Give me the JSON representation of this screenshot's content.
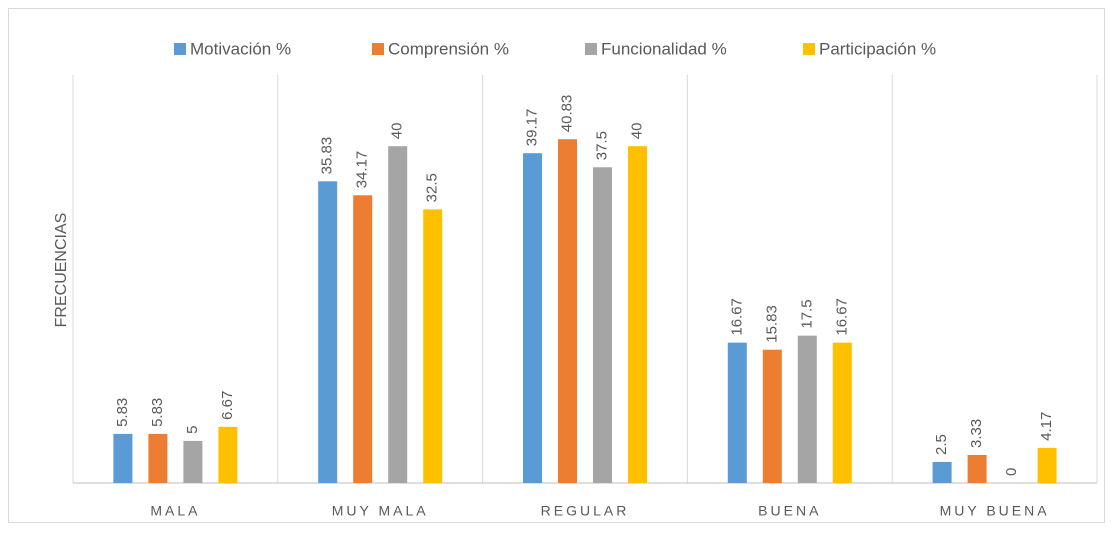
{
  "chart_data": {
    "type": "bar",
    "y_label": "FRECUENCIAS",
    "categories": [
      "MALA",
      "MUY MALA",
      "REGULAR",
      "BUENA",
      "MUY BUENA"
    ],
    "series": [
      {
        "name": "Motivación %",
        "color": "#5b9bd5",
        "values": [
          5.83,
          35.83,
          39.17,
          16.67,
          2.5
        ]
      },
      {
        "name": "Comprensión %",
        "color": "#ed7d31",
        "values": [
          5.83,
          34.17,
          40.83,
          15.83,
          3.33
        ]
      },
      {
        "name": "Funcionalidad %",
        "color": "#a5a5a5",
        "values": [
          5,
          40,
          37.5,
          17.5,
          0
        ]
      },
      {
        "name": "Participación %",
        "color": "#ffc000",
        "values": [
          6.67,
          32.5,
          40,
          16.67,
          4.17
        ]
      }
    ],
    "ylim": [
      0,
      50
    ],
    "legend": "top"
  }
}
